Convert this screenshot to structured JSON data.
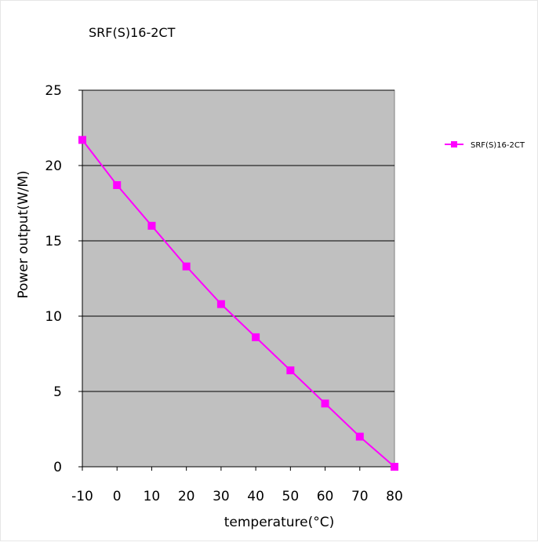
{
  "chart_data": {
    "type": "line",
    "title": "SRF(S)16-2CT",
    "xlabel": "temperature(°C)",
    "ylabel": "Power output(W/M)",
    "x": [
      -10,
      0,
      10,
      20,
      30,
      40,
      50,
      60,
      70,
      80
    ],
    "x_tick_labels": [
      "-10",
      "0",
      "10",
      "20",
      "30",
      "40",
      "50",
      "60",
      "70",
      "80"
    ],
    "y_tick_labels": [
      "0",
      "5",
      "10",
      "15",
      "20",
      "25"
    ],
    "y_ticks": [
      0,
      5,
      10,
      15,
      20,
      25
    ],
    "xlim": [
      -10,
      80
    ],
    "ylim": [
      0,
      25
    ],
    "grid": "horizontal",
    "legend_position": "right",
    "colors": {
      "plot_background": "#c0c0c0",
      "series": "#ff00ff",
      "gridline": "#000000"
    },
    "series": [
      {
        "name": "SRF(S)16-2CT",
        "marker": "square",
        "values": [
          21.7,
          18.7,
          16.0,
          13.3,
          10.8,
          8.6,
          6.4,
          4.2,
          2.0,
          0.0
        ]
      }
    ]
  }
}
